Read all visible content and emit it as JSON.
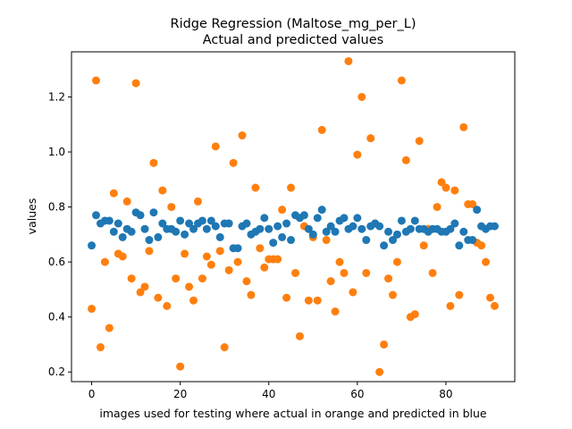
{
  "chart_data": {
    "type": "scatter",
    "title": "Ridge Regression (Maltose_mg_per_L)",
    "subtitle": "Actual and predicted values",
    "xlabel": "images used for testing where actual in orange and predicted in blue",
    "ylabel": "values",
    "xlim": [
      -4.55,
      95.55
    ],
    "ylim": [
      0.165,
      1.364
    ],
    "xticks": [
      0,
      20,
      40,
      60,
      80
    ],
    "yticks": [
      0.2,
      0.4,
      0.6,
      0.8,
      1.0,
      1.2
    ],
    "xtick_labels": [
      "0",
      "20",
      "40",
      "60",
      "80"
    ],
    "ytick_labels": [
      "0.2",
      "0.4",
      "0.6",
      "0.8",
      "1.0",
      "1.2"
    ],
    "grid": false,
    "series": [
      {
        "role": "actual",
        "color": "#ff7f0e",
        "x": [
          0,
          1,
          2,
          3,
          4,
          5,
          6,
          7,
          8,
          9,
          10,
          11,
          12,
          13,
          14,
          15,
          16,
          17,
          18,
          19,
          20,
          21,
          22,
          23,
          24,
          25,
          26,
          27,
          28,
          29,
          30,
          31,
          32,
          33,
          34,
          35,
          36,
          37,
          38,
          39,
          40,
          41,
          42,
          43,
          44,
          45,
          46,
          47,
          48,
          49,
          50,
          51,
          52,
          53,
          54,
          55,
          56,
          57,
          58,
          59,
          60,
          61,
          62,
          63,
          64,
          65,
          66,
          67,
          68,
          69,
          70,
          71,
          72,
          73,
          74,
          75,
          76,
          77,
          78,
          79,
          80,
          81,
          82,
          83,
          84,
          85,
          86,
          87,
          88,
          89,
          90,
          91
        ],
        "y": [
          0.43,
          1.26,
          0.29,
          0.6,
          0.36,
          0.85,
          0.63,
          0.62,
          0.82,
          0.54,
          1.25,
          0.49,
          0.51,
          0.64,
          0.96,
          0.47,
          0.86,
          0.44,
          0.8,
          0.54,
          0.22,
          0.63,
          0.51,
          0.46,
          0.82,
          0.54,
          0.62,
          0.59,
          1.02,
          0.64,
          0.29,
          0.57,
          0.96,
          0.6,
          1.06,
          0.53,
          0.48,
          0.87,
          0.65,
          0.58,
          0.61,
          0.61,
          0.61,
          0.79,
          0.47,
          0.87,
          0.56,
          0.33,
          0.73,
          0.46,
          0.69,
          0.46,
          1.08,
          0.68,
          0.53,
          0.42,
          0.6,
          0.56,
          1.33,
          0.49,
          0.99,
          1.2,
          0.56,
          1.05,
          0.74,
          0.2,
          0.3,
          0.54,
          0.48,
          0.6,
          1.26,
          0.97,
          0.4,
          0.41,
          1.04,
          0.66,
          0.72,
          0.56,
          0.8,
          0.89,
          0.87,
          0.44,
          0.86,
          0.48,
          1.09,
          0.81,
          0.81,
          0.67,
          0.66,
          0.6,
          0.47,
          0.44
        ]
      },
      {
        "role": "predicted",
        "color": "#1f77b4",
        "x": [
          0,
          1,
          2,
          3,
          4,
          5,
          6,
          7,
          8,
          9,
          10,
          11,
          12,
          13,
          14,
          15,
          16,
          17,
          18,
          19,
          20,
          21,
          22,
          23,
          24,
          25,
          26,
          27,
          28,
          29,
          30,
          31,
          32,
          33,
          34,
          35,
          36,
          37,
          38,
          39,
          40,
          41,
          42,
          43,
          44,
          45,
          46,
          47,
          48,
          49,
          50,
          51,
          52,
          53,
          54,
          55,
          56,
          57,
          58,
          59,
          60,
          61,
          62,
          63,
          64,
          65,
          66,
          67,
          68,
          69,
          70,
          71,
          72,
          73,
          74,
          75,
          76,
          77,
          78,
          79,
          80,
          81,
          82,
          83,
          84,
          85,
          86,
          87,
          88,
          89,
          90,
          91
        ],
        "y": [
          0.66,
          0.77,
          0.74,
          0.75,
          0.75,
          0.71,
          0.74,
          0.69,
          0.72,
          0.71,
          0.78,
          0.77,
          0.72,
          0.68,
          0.78,
          0.69,
          0.74,
          0.72,
          0.72,
          0.71,
          0.75,
          0.7,
          0.74,
          0.72,
          0.74,
          0.75,
          0.72,
          0.75,
          0.73,
          0.69,
          0.74,
          0.74,
          0.65,
          0.65,
          0.73,
          0.74,
          0.7,
          0.71,
          0.72,
          0.76,
          0.72,
          0.67,
          0.73,
          0.69,
          0.74,
          0.68,
          0.77,
          0.76,
          0.77,
          0.72,
          0.7,
          0.76,
          0.79,
          0.71,
          0.73,
          0.71,
          0.75,
          0.76,
          0.72,
          0.73,
          0.76,
          0.72,
          0.68,
          0.73,
          0.74,
          0.73,
          0.66,
          0.71,
          0.68,
          0.7,
          0.75,
          0.71,
          0.72,
          0.75,
          0.72,
          0.72,
          0.71,
          0.72,
          0.72,
          0.71,
          0.71,
          0.72,
          0.74,
          0.66,
          0.71,
          0.68,
          0.68,
          0.79,
          0.73,
          0.72,
          0.73,
          0.73
        ]
      }
    ]
  }
}
